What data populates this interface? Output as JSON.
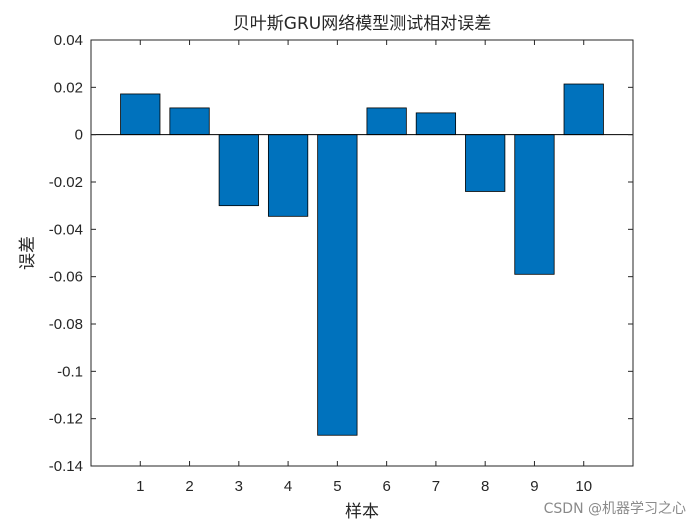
{
  "chart_data": {
    "type": "bar",
    "title": "贝叶斯GRU网络模型测试相对误差",
    "xlabel": "样本",
    "ylabel": "误差",
    "categories": [
      "1",
      "2",
      "3",
      "4",
      "5",
      "6",
      "7",
      "8",
      "9",
      "10"
    ],
    "values": [
      0.0172,
      0.0113,
      -0.03,
      -0.0345,
      -0.127,
      0.0113,
      0.0092,
      -0.024,
      -0.059,
      0.0214
    ],
    "ylim": [
      -0.14,
      0.04
    ],
    "xlim": [
      0,
      11
    ],
    "yticks": [
      0.04,
      0.02,
      0,
      -0.02,
      -0.04,
      -0.06,
      -0.08,
      -0.1,
      -0.12,
      -0.14
    ],
    "ytick_labels": [
      "0.04",
      "0.02",
      "0",
      "-0.02",
      "-0.04",
      "-0.06",
      "-0.08",
      "-0.1",
      "-0.12",
      "-0.14"
    ],
    "grid": false,
    "legend": false,
    "bar_color": "#0072BD"
  },
  "watermark": "CSDN @机器学习之心"
}
